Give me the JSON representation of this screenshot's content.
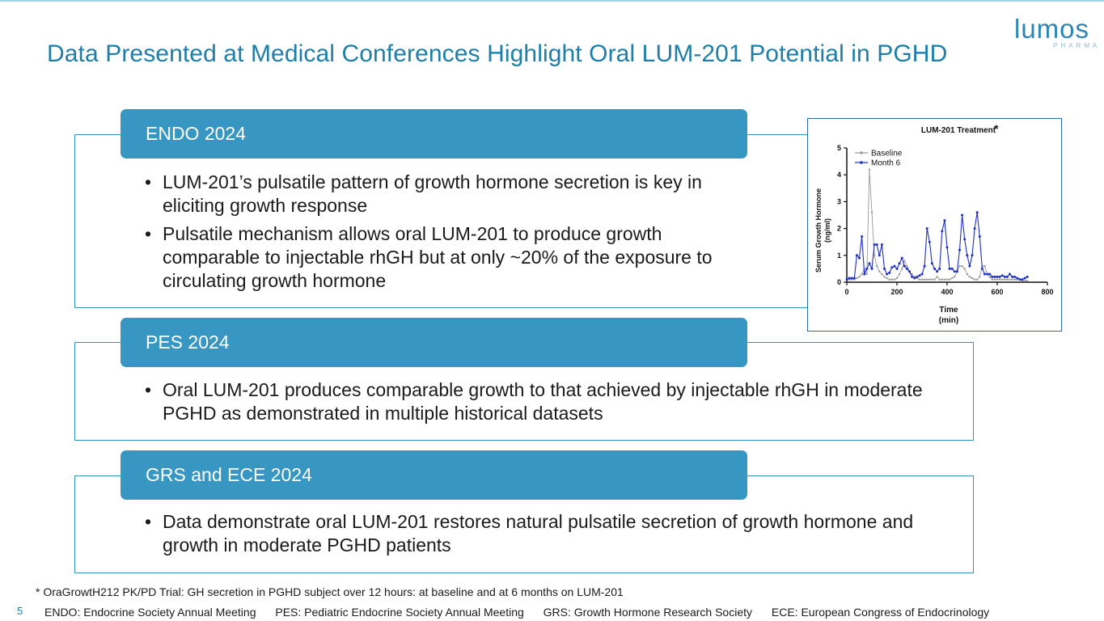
{
  "title": "Data Presented at Medical Conferences Highlight Oral LUM-201 Potential in PGHD",
  "logo": {
    "word": "lumos",
    "sub": "PHARMA"
  },
  "sections": [
    {
      "tab": "ENDO 2024",
      "bullets": [
        "LUM-201’s pulsatile pattern of growth hormone secretion is key in eliciting growth response",
        "Pulsatile mechanism allows oral LUM-201 to produce growth comparable to injectable rhGH but at only ~20% of the exposure to circulating growth hormone"
      ]
    },
    {
      "tab": "PES 2024",
      "bullets": [
        "Oral LUM-201 produces comparable growth to that achieved by injectable rhGH in moderate PGHD as demonstrated in multiple historical datasets"
      ]
    },
    {
      "tab": "GRS and ECE 2024",
      "bullets": [
        "Data demonstrate oral LUM-201 restores natural pulsatile secretion of growth hormone and growth in moderate PGHD patients"
      ]
    }
  ],
  "chart_data": {
    "type": "line",
    "title": "LUM-201 Treatment",
    "title_mark": "*",
    "xlabel": [
      "Time",
      "(min)"
    ],
    "ylabel": [
      "Serum Growth Hormone",
      "(ng/ml)"
    ],
    "xlim": [
      0,
      800
    ],
    "ylim": [
      0,
      5
    ],
    "xticks": [
      "0",
      "200",
      "400",
      "600",
      "800"
    ],
    "yticks": [
      "0",
      "1",
      "2",
      "3",
      "4",
      "5"
    ],
    "grid": false,
    "legend": "top-left",
    "series": [
      {
        "name": "Baseline",
        "color": "#9a9a9a",
        "x": [
          0,
          10,
          20,
          30,
          40,
          50,
          60,
          70,
          80,
          90,
          100,
          110,
          120,
          130,
          140,
          150,
          160,
          170,
          180,
          190,
          200,
          210,
          220,
          230,
          240,
          250,
          260,
          270,
          280,
          290,
          300,
          310,
          320,
          330,
          340,
          350,
          360,
          370,
          380,
          390,
          400,
          410,
          420,
          430,
          440,
          450,
          460,
          470,
          480,
          490,
          500,
          510,
          520,
          530,
          540,
          550,
          560,
          570,
          580,
          590,
          600,
          610,
          620,
          630,
          640,
          650,
          660,
          670,
          680,
          690,
          700,
          710,
          720
        ],
        "values": [
          0.1,
          0.1,
          0.1,
          0.1,
          0.15,
          0.2,
          0.3,
          0.5,
          0.3,
          4.2,
          2.6,
          1.0,
          0.6,
          0.4,
          0.3,
          0.2,
          0.15,
          0.1,
          0.1,
          0.1,
          0.15,
          0.3,
          0.5,
          0.8,
          0.6,
          0.4,
          0.3,
          0.2,
          0.15,
          0.1,
          0.1,
          0.1,
          0.1,
          0.1,
          0.1,
          0.1,
          0.2,
          0.1,
          0.1,
          0.1,
          0.1,
          0.1,
          0.15,
          0.2,
          0.4,
          0.6,
          0.6,
          0.5,
          0.3,
          0.2,
          0.15,
          0.1,
          0.1,
          0.2,
          0.6,
          0.6,
          0.3,
          0.2,
          0.1,
          0.1,
          0.1,
          0.1,
          0.1,
          0.1,
          0.1,
          0.1,
          0.1,
          0.1,
          0.1,
          0.1,
          0.05,
          0.05,
          0.05
        ]
      },
      {
        "name": "Month 6",
        "color": "#1e2fc4",
        "x": [
          0,
          10,
          20,
          30,
          40,
          50,
          60,
          70,
          80,
          90,
          100,
          110,
          120,
          130,
          140,
          150,
          160,
          170,
          180,
          190,
          200,
          210,
          220,
          230,
          240,
          250,
          260,
          270,
          280,
          290,
          300,
          310,
          320,
          330,
          340,
          350,
          360,
          370,
          380,
          390,
          400,
          410,
          420,
          430,
          440,
          450,
          460,
          470,
          480,
          490,
          500,
          510,
          520,
          530,
          540,
          550,
          560,
          570,
          580,
          590,
          600,
          610,
          620,
          630,
          640,
          650,
          660,
          670,
          680,
          690,
          700,
          710,
          720
        ],
        "values": [
          0.1,
          0.15,
          0.15,
          0.15,
          1.0,
          0.9,
          1.7,
          0.3,
          0.5,
          0.7,
          0.5,
          1.4,
          1.4,
          1.0,
          1.4,
          0.5,
          0.3,
          0.35,
          0.55,
          0.6,
          0.5,
          0.7,
          0.9,
          0.6,
          0.5,
          0.4,
          0.2,
          0.15,
          0.2,
          0.25,
          0.3,
          0.6,
          2.0,
          1.5,
          0.7,
          0.5,
          0.4,
          0.5,
          1.9,
          2.3,
          1.3,
          0.5,
          0.5,
          0.4,
          0.4,
          1.2,
          2.5,
          1.6,
          1.0,
          0.6,
          1.0,
          2.0,
          2.6,
          1.7,
          0.5,
          0.3,
          0.3,
          0.3,
          0.2,
          0.2,
          0.2,
          0.2,
          0.25,
          0.2,
          0.2,
          0.3,
          0.2,
          0.2,
          0.15,
          0.1,
          0.1,
          0.15,
          0.2
        ]
      }
    ]
  },
  "footnote": "* OraGrowtH212 PK/PD Trial: GH secretion in PGHD subject over 12 hours: at baseline and at 6 months on LUM-201",
  "page_number": "5",
  "abbreviations": [
    "ENDO: Endocrine Society Annual Meeting",
    "PES: Pediatric Endocrine Society Annual Meeting",
    "GRS: Growth Hormone Research Society",
    "ECE: European Congress of Endocrinology"
  ]
}
